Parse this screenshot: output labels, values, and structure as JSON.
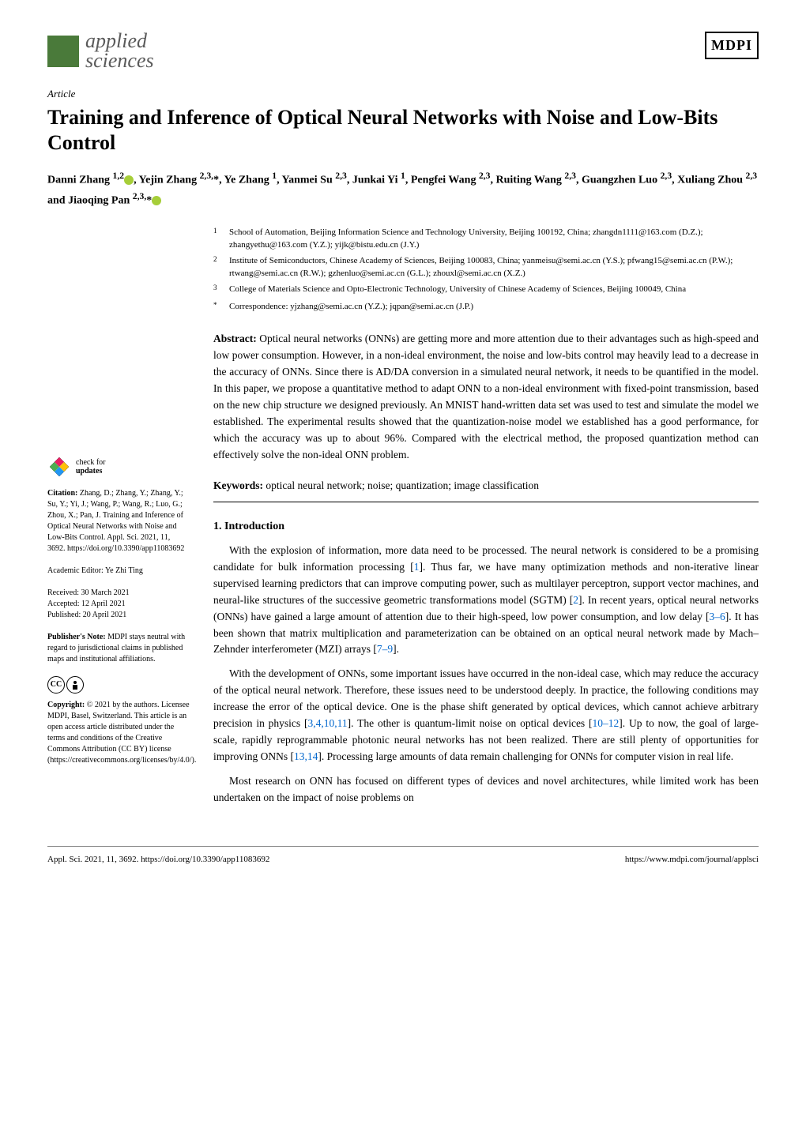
{
  "journal": {
    "name_line1": "applied",
    "name_line2": "sciences",
    "publisher_logo": "MDPI"
  },
  "article": {
    "type": "Article",
    "title": "Training and Inference of Optical Neural Networks with Noise and Low-Bits Control",
    "authors_html": "Danni Zhang <sup>1,2</sup><span class='orcid'></span>, Yejin Zhang <sup>2,3,</sup>*, Ye Zhang <sup>1</sup>, Yanmei Su <sup>2,3</sup>, Junkai Yi <sup>1</sup>, Pengfei Wang <sup>2,3</sup>, Ruiting Wang <sup>2,3</sup>, Guangzhen Luo <sup>2,3</sup>, Xuliang Zhou <sup>2,3</sup> and Jiaoqing Pan <sup>2,3,</sup>*<span class='orcid'></span>"
  },
  "affiliations": [
    {
      "num": "1",
      "text": "School of Automation, Beijing Information Science and Technology University, Beijing 100192, China; zhangdn1111@163.com (D.Z.); zhangyethu@163.com (Y.Z.); yijk@bistu.edu.cn (J.Y.)"
    },
    {
      "num": "2",
      "text": "Institute of Semiconductors, Chinese Academy of Sciences, Beijing 100083, China; yanmeisu@semi.ac.cn (Y.S.); pfwang15@semi.ac.cn (P.W.); rtwang@semi.ac.cn (R.W.); gzhenluo@semi.ac.cn (G.L.); zhouxl@semi.ac.cn (X.Z.)"
    },
    {
      "num": "3",
      "text": "College of Materials Science and Opto-Electronic Technology, University of Chinese Academy of Sciences, Beijing 100049, China"
    },
    {
      "num": "*",
      "text": "Correspondence: yjzhang@semi.ac.cn (Y.Z.); jqpan@semi.ac.cn (J.P.)"
    }
  ],
  "abstract": {
    "label": "Abstract:",
    "text": "Optical neural networks (ONNs) are getting more and more attention due to their advantages such as high-speed and low power consumption. However, in a non-ideal environment, the noise and low-bits control may heavily lead to a decrease in the accuracy of ONNs. Since there is AD/DA conversion in a simulated neural network, it needs to be quantified in the model. In this paper, we propose a quantitative method to adapt ONN to a non-ideal environment with fixed-point transmission, based on the new chip structure we designed previously. An MNIST hand-written data set was used to test and simulate the model we established. The experimental results showed that the quantization-noise model we established has a good performance, for which the accuracy was up to about 96%. Compared with the electrical method, the proposed quantization method can effectively solve the non-ideal ONN problem."
  },
  "keywords": {
    "label": "Keywords:",
    "text": "optical neural network; noise; quantization; image classification"
  },
  "section1": {
    "heading": "1. Introduction",
    "para1": "With the explosion of information, more data need to be processed. The neural network is considered to be a promising candidate for bulk information processing [1]. Thus far, we have many optimization methods and non-iterative linear supervised learning predictors that can improve computing power, such as multilayer perceptron, support vector machines, and neural-like structures of the successive geometric transformations model (SGTM) [2]. In recent years, optical neural networks (ONNs) have gained a large amount of attention due to their high-speed, low power consumption, and low delay [3–6]. It has been shown that matrix multiplication and parameterization can be obtained on an optical neural network made by Mach–Zehnder interferometer (MZI) arrays [7–9].",
    "para2": "With the development of ONNs, some important issues have occurred in the non-ideal case, which may reduce the accuracy of the optical neural network. Therefore, these issues need to be understood deeply. In practice, the following conditions may increase the error of the optical device. One is the phase shift generated by optical devices, which cannot achieve arbitrary precision in physics [3,4,10,11]. The other is quantum-limit noise on optical devices [10–12]. Up to now, the goal of large-scale, rapidly reprogrammable photonic neural networks has not been realized. There are still plenty of opportunities for improving ONNs [13,14]. Processing large amounts of data remain challenging for ONNs for computer vision in real life.",
    "para3": "Most research on ONN has focused on different types of devices and novel architectures, while limited work has been undertaken on the impact of noise problems on"
  },
  "sidebar": {
    "check_updates_line1": "check for",
    "check_updates_line2": "updates",
    "citation_label": "Citation:",
    "citation_text": "Zhang, D.; Zhang, Y.; Zhang, Y.; Su, Y.; Yi, J.; Wang, P.; Wang, R.; Luo, G.; Zhou, X.; Pan, J. Training and Inference of Optical Neural Networks with Noise and Low-Bits Control. Appl. Sci. 2021, 11, 3692. https://doi.org/10.3390/app11083692",
    "editor_label": "Academic Editor:",
    "editor_text": "Ye Zhi Ting",
    "received": "Received: 30 March 2021",
    "accepted": "Accepted: 12 April 2021",
    "published": "Published: 20 April 2021",
    "pubnote_label": "Publisher's Note:",
    "pubnote_text": "MDPI stays neutral with regard to jurisdictional claims in published maps and institutional affiliations.",
    "copyright_label": "Copyright:",
    "copyright_text": "© 2021 by the authors. Licensee MDPI, Basel, Switzerland. This article is an open access article distributed under the terms and conditions of the Creative Commons Attribution (CC BY) license (https://creativecommons.org/licenses/by/4.0/)."
  },
  "footer": {
    "left": "Appl. Sci. 2021, 11, 3692. https://doi.org/10.3390/app11083692",
    "right": "https://www.mdpi.com/journal/applsci"
  },
  "colors": {
    "journal_icon_bg": "#4a7a3a",
    "journal_name_color": "#5a5a5a",
    "orcid_bg": "#a6ce39",
    "ref_link_color": "#0066cc",
    "check_icon_colors": [
      "#e91e63",
      "#4caf50",
      "#2196f3",
      "#ffc107"
    ]
  }
}
